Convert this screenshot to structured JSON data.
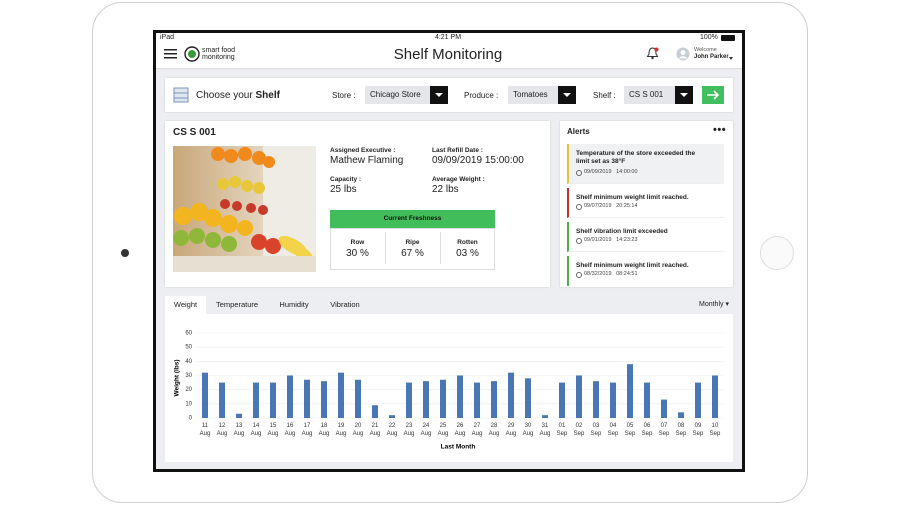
{
  "status_bar": {
    "device": "iPad",
    "time": "4:21 PM",
    "battery": "100%"
  },
  "header": {
    "logo_line1": "smart food",
    "logo_line2": "monitoring",
    "title": "Shelf Monitoring",
    "welcome": "Welcome",
    "user": "John Parker"
  },
  "filter": {
    "label_prefix": "Choose your ",
    "label_bold": "Shelf",
    "store_label": "Store :",
    "store": "Chicago Store",
    "produce_label": "Produce :",
    "produce": "Tomatoes",
    "shelf_label": "Shelf :",
    "shelf": "CS S 001"
  },
  "shelf_card": {
    "title": "CS S 001",
    "fields": [
      {
        "label": "Assigned Executive :",
        "value": "Mathew Flaming"
      },
      {
        "label": "Last Refill Date :",
        "value": "09/09/2019  15:00:00"
      },
      {
        "label": "Capacity :",
        "value": "25 lbs"
      },
      {
        "label": "Average Weight :",
        "value": "22 lbs"
      }
    ],
    "freshness_title": "Current Freshness",
    "freshness": [
      {
        "label": "Row",
        "value": "30 %"
      },
      {
        "label": "Ripe",
        "value": "67 %"
      },
      {
        "label": "Rotten",
        "value": "03 %"
      }
    ]
  },
  "alerts": {
    "title": "Alerts",
    "items": [
      {
        "text": "Temperature of the store exceeded the limit set as 38°F",
        "time": "09/09/2019   14:00:00",
        "color": "#e6c23a"
      },
      {
        "text": "Shelf minimum weight limit reached.",
        "time": "09/07/2019   20:25:14",
        "color": "#c9302c"
      },
      {
        "text": "Shelf vibration limit exceeded",
        "time": "09/01/2019   14:23:23",
        "color": "#4cae4c"
      },
      {
        "text": "Shelf minimum weight limit reached.",
        "time": "08/32/2019   08:24:51",
        "color": "#4cae4c"
      }
    ]
  },
  "tabs": [
    "Weight",
    "Temperature",
    "Humidity",
    "Vibration"
  ],
  "period": "Monthly",
  "chart_data": {
    "type": "bar",
    "ylabel": "Weight (lbs)",
    "xlabel": "Last Month",
    "categories": [
      "11 Aug",
      "12 Aug",
      "13 Aug",
      "14 Aug",
      "15 Aug",
      "16 Aug",
      "17 Aug",
      "18 Aug",
      "19 Aug",
      "20 Aug",
      "21 Aug",
      "22 Aug",
      "23 Aug",
      "24 Aug",
      "25 Aug",
      "26 Aug",
      "27 Aug",
      "28 Aug",
      "29 Aug",
      "30 Aug",
      "31 Aug",
      "01 Sep",
      "02 Sep",
      "03 Sep",
      "04 Sep",
      "05 Sep",
      "06 Sep",
      "07 Sep",
      "08 Sep",
      "09 Sep",
      "10 Sep"
    ],
    "values": [
      32,
      25,
      3,
      25,
      25,
      30,
      27,
      26,
      32,
      27,
      9,
      2,
      25,
      26,
      27,
      30,
      25,
      26,
      32,
      28,
      2,
      25,
      30,
      26,
      25,
      38,
      25,
      13,
      4,
      25,
      30
    ],
    "color": "#4a77b4",
    "ylim": [
      0,
      60
    ],
    "yticks": [
      0,
      10,
      20,
      30,
      40,
      50,
      60
    ],
    "grid": true
  }
}
